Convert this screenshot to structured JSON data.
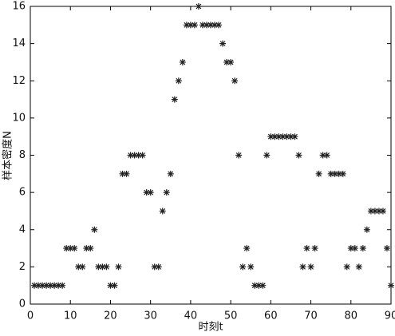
{
  "chart_data": {
    "type": "scatter",
    "xlabel": "时刻t",
    "ylabel": "样本密度N",
    "x": [
      1,
      2,
      3,
      4,
      5,
      6,
      7,
      8,
      9,
      10,
      11,
      12,
      13,
      14,
      15,
      16,
      17,
      18,
      19,
      20,
      21,
      22,
      23,
      24,
      25,
      26,
      27,
      28,
      29,
      30,
      31,
      32,
      33,
      34,
      35,
      36,
      37,
      38,
      39,
      40,
      41,
      42,
      43,
      44,
      45,
      46,
      47,
      48,
      49,
      50,
      51,
      52,
      53,
      54,
      55,
      56,
      57,
      58,
      59,
      60,
      61,
      62,
      63,
      64,
      65,
      66,
      67,
      68,
      69,
      70,
      71,
      72,
      73,
      74,
      75,
      76,
      77,
      78,
      79,
      80,
      81,
      82,
      83,
      84,
      85,
      86,
      87,
      88,
      89,
      90
    ],
    "values": [
      1,
      1,
      1,
      1,
      1,
      1,
      1,
      1,
      3,
      3,
      3,
      2,
      2,
      3,
      3,
      4,
      2,
      2,
      2,
      1,
      1,
      2,
      7,
      7,
      8,
      8,
      8,
      8,
      6,
      6,
      2,
      2,
      5,
      6,
      7,
      11,
      12,
      13,
      15,
      15,
      15,
      16,
      15,
      15,
      15,
      15,
      15,
      14,
      13,
      13,
      12,
      8,
      2,
      3,
      2,
      1,
      1,
      1,
      8,
      9,
      9,
      9,
      9,
      9,
      9,
      9,
      8,
      2,
      3,
      2,
      3,
      7,
      8,
      8,
      7,
      7,
      7,
      7,
      2,
      3,
      3,
      2,
      3,
      4,
      5,
      5,
      5,
      5,
      3,
      1
    ],
    "color": "#222222",
    "xlim": [
      0,
      90
    ],
    "xticks": [
      0,
      10,
      20,
      30,
      40,
      50,
      60,
      70,
      80,
      90
    ],
    "ylim": [
      0,
      16
    ],
    "yticks": [
      0,
      2,
      4,
      6,
      8,
      10,
      12,
      14,
      16
    ]
  }
}
